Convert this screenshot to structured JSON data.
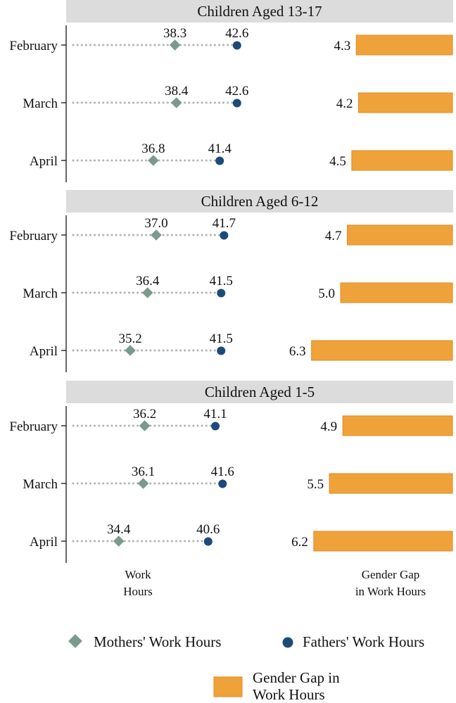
{
  "chart_data": {
    "type": "dot-and-bar",
    "series_names": {
      "mothers": "Mothers' Work Hours",
      "fathers": "Fathers' Work Hours",
      "gap": [
        "Gender Gap in",
        "Work Hours"
      ]
    },
    "axis_titles": {
      "work_hours": [
        "Work",
        "Hours"
      ],
      "gender_gap": [
        "Gender Gap",
        "in Work Hours"
      ]
    },
    "colors": {
      "mothers": "#7a9a8c",
      "fathers": "#1f4a78",
      "gap_fill": "#f0a23a",
      "gap_stroke": "#e08a1a"
    },
    "work_hours_range": [
      30,
      45
    ],
    "gap_range": [
      0,
      7
    ],
    "panels": [
      {
        "title": "Children Aged 13-17",
        "rows": [
          {
            "month": "February",
            "mothers": "38.3",
            "fathers": "42.6",
            "gap": "4.3"
          },
          {
            "month": "March",
            "mothers": "38.4",
            "fathers": "42.6",
            "gap": "4.2"
          },
          {
            "month": "April",
            "mothers": "36.8",
            "fathers": "41.4",
            "gap": "4.5"
          }
        ]
      },
      {
        "title": "Children Aged 6-12",
        "rows": [
          {
            "month": "February",
            "mothers": "37.0",
            "fathers": "41.7",
            "gap": "4.7"
          },
          {
            "month": "March",
            "mothers": "36.4",
            "fathers": "41.5",
            "gap": "5.0"
          },
          {
            "month": "April",
            "mothers": "35.2",
            "fathers": "41.5",
            "gap": "6.3"
          }
        ]
      },
      {
        "title": "Children Aged 1-5",
        "rows": [
          {
            "month": "February",
            "mothers": "36.2",
            "fathers": "41.1",
            "gap": "4.9"
          },
          {
            "month": "March",
            "mothers": "36.1",
            "fathers": "41.6",
            "gap": "5.5"
          },
          {
            "month": "April",
            "mothers": "34.4",
            "fathers": "40.6",
            "gap": "6.2"
          }
        ]
      }
    ]
  }
}
